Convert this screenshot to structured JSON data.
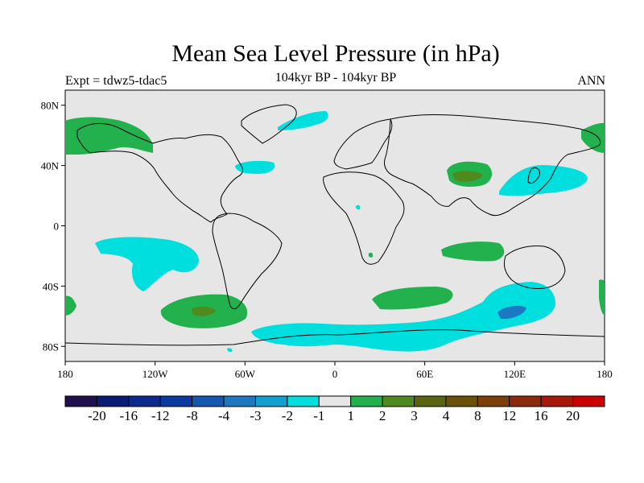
{
  "title": "Mean Sea Level Pressure (in hPa)",
  "subtitle": "104kyr BP - 104kyr BP",
  "experiment": "Expt = tdwz5-tdac5",
  "season": "ANN",
  "map": {
    "lat_ticks": [
      {
        "label": "80N",
        "lat": 80
      },
      {
        "label": "40N",
        "lat": 40
      },
      {
        "label": "0",
        "lat": 0
      },
      {
        "label": "40S",
        "lat": -40
      },
      {
        "label": "80S",
        "lat": -80
      }
    ],
    "lon_ticks": [
      {
        "label": "180",
        "lon": -180
      },
      {
        "label": "120W",
        "lon": -120
      },
      {
        "label": "60W",
        "lon": -60
      },
      {
        "label": "0",
        "lon": 0
      },
      {
        "label": "60E",
        "lon": 60
      },
      {
        "label": "120E",
        "lon": 120
      },
      {
        "label": "180",
        "lon": 180
      }
    ],
    "background_color": "#e6e6e6"
  },
  "colorbar": {
    "colors": [
      "#20104f",
      "#0b1a74",
      "#0a2a8f",
      "#0a3aa0",
      "#1458b0",
      "#1c78c0",
      "#12a0d2",
      "#00dede",
      "#e6e6e6",
      "#22b14c",
      "#4f8a1e",
      "#5a6410",
      "#6a5008",
      "#7c3e0a",
      "#8e2a0c",
      "#a81808",
      "#cc0000"
    ],
    "labels": [
      "-20",
      "-16",
      "-12",
      "-8",
      "-4",
      "-3",
      "-2",
      "-1",
      "1",
      "2",
      "3",
      "4",
      "8",
      "12",
      "16",
      "20"
    ]
  }
}
